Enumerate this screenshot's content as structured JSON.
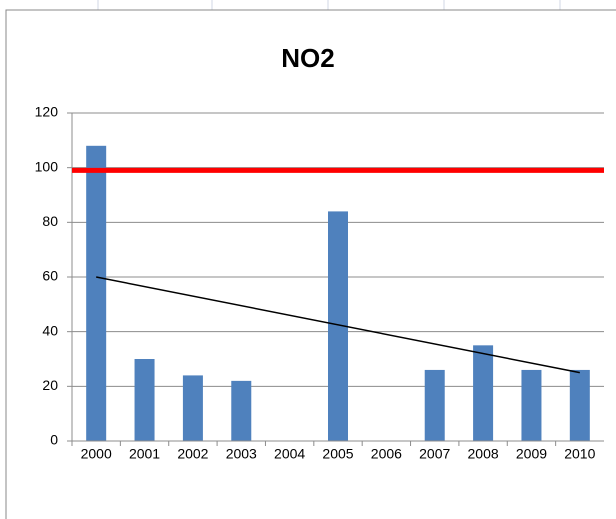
{
  "chart_data": {
    "type": "bar",
    "title": "NO2",
    "categories": [
      "2000",
      "2001",
      "2002",
      "2003",
      "2004",
      "2005",
      "2006",
      "2007",
      "2008",
      "2009",
      "2010"
    ],
    "values": [
      108,
      30,
      24,
      22,
      null,
      84,
      null,
      26,
      35,
      26,
      26
    ],
    "color": "#4f81bd",
    "ylim": [
      0,
      120
    ],
    "yticks": [
      0,
      20,
      40,
      60,
      80,
      100,
      120
    ],
    "grid": true,
    "threshold": {
      "value": 99,
      "color": "#ff0000"
    },
    "trendline": {
      "start": 60,
      "end": 25,
      "color": "#000000"
    }
  }
}
